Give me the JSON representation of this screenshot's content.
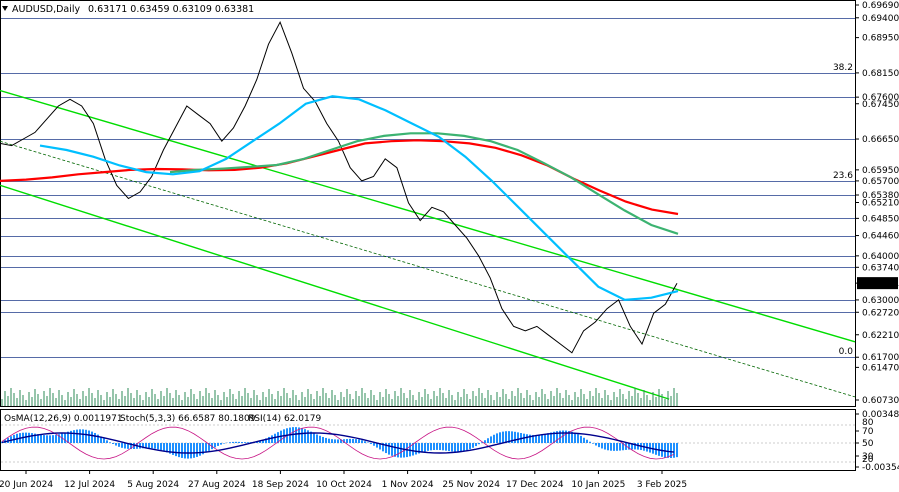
{
  "window": {
    "symbol": "AUDUSD,Daily",
    "ohlc": "0.63171 0.63459 0.63109 0.63381"
  },
  "chart_data": {
    "type": "line",
    "title": "AUDUSD,Daily",
    "price_axis_labels": [
      "0.69690",
      "0.69400",
      "0.68950",
      "0.68150",
      "0.67600",
      "0.67450",
      "0.66650",
      "0.65950",
      "0.65700",
      "0.65380",
      "0.65210",
      "0.64850",
      "0.64460",
      "0.64000",
      "0.63740",
      "0.63381",
      "0.63000",
      "0.62720",
      "0.62210",
      "0.61700",
      "0.61470",
      "0.60730"
    ],
    "price_levels": [
      0.694,
      0.6815,
      0.676,
      0.6665,
      0.657,
      0.6538,
      0.6485,
      0.6446,
      0.64,
      0.6374,
      0.63,
      0.6272,
      0.617
    ],
    "last_price": "0.63381",
    "fib_labels": [
      {
        "text": "38.2",
        "price": 0.6815
      },
      {
        "text": "23.6",
        "price": 0.657
      },
      {
        "text": "0.0",
        "price": 0.617
      }
    ],
    "date_labels": [
      "20 Jun 2024",
      "12 Jul 2024",
      "5 Aug 2024",
      "27 Aug 2024",
      "18 Sep 2024",
      "10 Oct 2024",
      "1 Nov 2024",
      "25 Nov 2024",
      "17 Dec 2024",
      "10 Jan 2025",
      "3 Feb 2025"
    ],
    "ylim": [
      0.6073,
      0.6969
    ],
    "series": [
      {
        "color": "#000000",
        "values": [
          0.6655,
          0.665,
          0.6665,
          0.668,
          0.671,
          0.674,
          0.6755,
          0.674,
          0.67,
          0.662,
          0.656,
          0.653,
          0.6545,
          0.658,
          0.664,
          0.669,
          0.674,
          0.672,
          0.67,
          0.666,
          0.669,
          0.674,
          0.68,
          0.688,
          0.693,
          0.686,
          0.678,
          0.675,
          0.67,
          0.666,
          0.66,
          0.657,
          0.658,
          0.662,
          0.66,
          0.652,
          0.648,
          0.651,
          0.65,
          0.647,
          0.644,
          0.64,
          0.635,
          0.628,
          0.624,
          0.623,
          0.624,
          0.622,
          0.62,
          0.618,
          0.623,
          0.625,
          0.628,
          0.63,
          0.624,
          0.62,
          0.627,
          0.629,
          0.6338
        ]
      },
      {
        "color": "#ff0000",
        "values": [
          0.657,
          0.6573,
          0.6578,
          0.6585,
          0.659,
          0.6595,
          0.6597,
          0.6596,
          0.6594,
          0.6595,
          0.66,
          0.661,
          0.6625,
          0.664,
          0.6655,
          0.666,
          0.6662,
          0.666,
          0.6655,
          0.6645,
          0.6628,
          0.6605,
          0.6575,
          0.6548,
          0.6523,
          0.6505,
          0.6495
        ]
      },
      {
        "color": "#3cb371",
        "values": [
          0.659,
          0.6595,
          0.6598,
          0.6602,
          0.6606,
          0.662,
          0.664,
          0.666,
          0.6672,
          0.6678,
          0.6678,
          0.6672,
          0.666,
          0.664,
          0.661,
          0.6578,
          0.654,
          0.6503,
          0.647,
          0.645
        ]
      },
      {
        "color": "#00bfff",
        "values": [
          0.665,
          0.664,
          0.6625,
          0.6605,
          0.659,
          0.6585,
          0.6592,
          0.662,
          0.666,
          0.67,
          0.6745,
          0.6762,
          0.6755,
          0.673,
          0.67,
          0.667,
          0.6625,
          0.657,
          0.651,
          0.645,
          0.639,
          0.633,
          0.63,
          0.6305,
          0.632
        ]
      }
    ],
    "trendlines": [
      {
        "color": "#00dd00",
        "from": {
          "date_index": 0,
          "price": 0.6775
        },
        "to": {
          "date_index": 46,
          "price": 0.6205
        }
      },
      {
        "color": "#00dd00",
        "from": {
          "date_index": 0,
          "price": 0.656
        },
        "to": {
          "date_index": 36,
          "price": 0.6075
        }
      },
      {
        "color": "#006600",
        "from": {
          "date_index": 0,
          "price": 0.666
        },
        "to": {
          "date_index": 46,
          "price": 0.608
        }
      }
    ],
    "indicators": {
      "osma": "OsMA(12,26,9) 0.0011971",
      "stoch": "Stoch(5,3,3) 66.6587 80.1809",
      "rsi": "RSI(14) 62.0179",
      "axis_labels": [
        "0.003489",
        "70",
        "50",
        "30",
        "-0.003548"
      ],
      "axis_extra": [
        "80",
        "20"
      ]
    }
  }
}
